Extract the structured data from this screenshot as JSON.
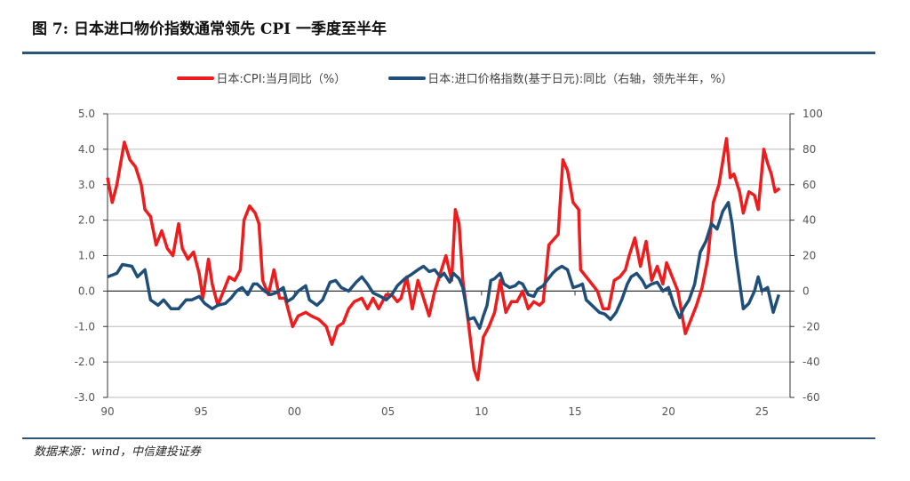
{
  "title": "图 7: 日本进口物价指数通常领先 CPI 一季度至半年",
  "source": "数据来源：wind，中信建投证券",
  "chart_data": {
    "type": "line",
    "title": "图 7: 日本进口物价指数通常领先 CPI 一季度至半年",
    "x_tick_labels": [
      "90",
      "95",
      "00",
      "05",
      "10",
      "15",
      "20",
      "25"
    ],
    "x_tick_years": [
      1990,
      1995,
      2000,
      2005,
      2010,
      2015,
      2020,
      2025
    ],
    "xlim": [
      1990,
      2026.5
    ],
    "y_left": {
      "ylim": [
        -3,
        5
      ],
      "ticks": [
        "5.0",
        "4.0",
        "3.0",
        "2.0",
        "1.0",
        "0.0",
        "-1.0",
        "-2.0",
        "-3.0"
      ]
    },
    "y_right": {
      "ylim": [
        -60,
        100
      ],
      "ticks": [
        "100",
        "80",
        "60",
        "40",
        "20",
        "0",
        "-20",
        "-40",
        "-60"
      ]
    },
    "grid": true,
    "legend": "top",
    "series": [
      {
        "name": "日本:CPI:当月同比（%）",
        "axis": "left",
        "color": "#ee1c1c",
        "points": [
          [
            1990,
            3.2
          ],
          [
            1990.25,
            2.5
          ],
          [
            1990.5,
            3.0
          ],
          [
            1990.9,
            4.2
          ],
          [
            1991.2,
            3.7
          ],
          [
            1991.5,
            3.5
          ],
          [
            1991.8,
            3.0
          ],
          [
            1992.0,
            2.3
          ],
          [
            1992.3,
            2.1
          ],
          [
            1992.6,
            1.3
          ],
          [
            1992.9,
            1.7
          ],
          [
            1993.2,
            1.2
          ],
          [
            1993.5,
            1.0
          ],
          [
            1993.8,
            1.9
          ],
          [
            1994.0,
            1.2
          ],
          [
            1994.3,
            0.9
          ],
          [
            1994.6,
            1.1
          ],
          [
            1994.9,
            0.5
          ],
          [
            1995.1,
            -0.2
          ],
          [
            1995.4,
            0.9
          ],
          [
            1995.6,
            0.2
          ],
          [
            1995.9,
            -0.4
          ],
          [
            1996.2,
            0.0
          ],
          [
            1996.5,
            0.4
          ],
          [
            1996.8,
            0.3
          ],
          [
            1997.1,
            0.6
          ],
          [
            1997.3,
            2.0
          ],
          [
            1997.6,
            2.4
          ],
          [
            1997.9,
            2.2
          ],
          [
            1998.1,
            1.9
          ],
          [
            1998.3,
            0.3
          ],
          [
            1998.6,
            -0.1
          ],
          [
            1998.9,
            0.6
          ],
          [
            1999.2,
            -0.2
          ],
          [
            1999.5,
            -0.2
          ],
          [
            1999.9,
            -1.0
          ],
          [
            2000.2,
            -0.7
          ],
          [
            2000.6,
            -0.6
          ],
          [
            2000.9,
            -0.7
          ],
          [
            2001.3,
            -0.8
          ],
          [
            2001.7,
            -1.0
          ],
          [
            2002.0,
            -1.5
          ],
          [
            2002.3,
            -1.0
          ],
          [
            2002.6,
            -0.9
          ],
          [
            2002.9,
            -0.5
          ],
          [
            2003.2,
            -0.3
          ],
          [
            2003.6,
            -0.2
          ],
          [
            2003.9,
            -0.5
          ],
          [
            2004.2,
            -0.2
          ],
          [
            2004.5,
            -0.5
          ],
          [
            2004.9,
            -0.1
          ],
          [
            2005.2,
            -0.1
          ],
          [
            2005.5,
            -0.3
          ],
          [
            2005.7,
            -0.2
          ],
          [
            2006.0,
            0.4
          ],
          [
            2006.3,
            -0.5
          ],
          [
            2006.6,
            0.3
          ],
          [
            2006.9,
            -0.2
          ],
          [
            2007.2,
            -0.7
          ],
          [
            2007.5,
            0.0
          ],
          [
            2007.8,
            0.5
          ],
          [
            2008.1,
            1.0
          ],
          [
            2008.4,
            0.3
          ],
          [
            2008.6,
            2.3
          ],
          [
            2008.8,
            1.9
          ],
          [
            2009.0,
            0.3
          ],
          [
            2009.3,
            -0.9
          ],
          [
            2009.6,
            -2.2
          ],
          [
            2009.8,
            -2.5
          ],
          [
            2010.1,
            -1.3
          ],
          [
            2010.4,
            -1.0
          ],
          [
            2010.7,
            -0.6
          ],
          [
            2011.0,
            0.3
          ],
          [
            2011.3,
            -0.6
          ],
          [
            2011.6,
            -0.3
          ],
          [
            2011.9,
            -0.3
          ],
          [
            2012.2,
            0.0
          ],
          [
            2012.5,
            -0.5
          ],
          [
            2012.8,
            -0.3
          ],
          [
            2013.1,
            -0.4
          ],
          [
            2013.3,
            -0.3
          ],
          [
            2013.6,
            1.3
          ],
          [
            2014.1,
            1.6
          ],
          [
            2014.35,
            3.7
          ],
          [
            2014.6,
            3.4
          ],
          [
            2014.9,
            2.5
          ],
          [
            2015.2,
            2.3
          ],
          [
            2015.3,
            0.6
          ],
          [
            2015.9,
            0.2
          ],
          [
            2016.2,
            0.0
          ],
          [
            2016.5,
            -0.5
          ],
          [
            2016.8,
            -0.5
          ],
          [
            2017.1,
            0.3
          ],
          [
            2017.4,
            0.4
          ],
          [
            2017.7,
            0.6
          ],
          [
            2017.9,
            1.0
          ],
          [
            2018.2,
            1.5
          ],
          [
            2018.5,
            0.7
          ],
          [
            2018.8,
            1.4
          ],
          [
            2019.1,
            0.3
          ],
          [
            2019.4,
            0.7
          ],
          [
            2019.7,
            0.2
          ],
          [
            2019.9,
            0.8
          ],
          [
            2020.2,
            0.4
          ],
          [
            2020.5,
            0.0
          ],
          [
            2020.9,
            -1.2
          ],
          [
            2021.2,
            -0.8
          ],
          [
            2021.5,
            -0.4
          ],
          [
            2021.8,
            0.1
          ],
          [
            2022.1,
            0.9
          ],
          [
            2022.4,
            2.5
          ],
          [
            2022.7,
            3.0
          ],
          [
            2023.1,
            4.3
          ],
          [
            2023.3,
            3.2
          ],
          [
            2023.5,
            3.3
          ],
          [
            2023.8,
            2.8
          ],
          [
            2024.0,
            2.2
          ],
          [
            2024.3,
            2.8
          ],
          [
            2024.6,
            2.7
          ],
          [
            2024.8,
            2.3
          ],
          [
            2025.1,
            4.0
          ],
          [
            2025.3,
            3.6
          ],
          [
            2025.5,
            3.3
          ],
          [
            2025.7,
            2.8
          ],
          [
            2025.95,
            2.9
          ]
        ]
      },
      {
        "name": "日本:进口价格指数(基于日元):同比（右轴，领先半年，%）",
        "axis": "right",
        "color": "#1f4e79",
        "points": [
          [
            1990,
            8
          ],
          [
            1990.5,
            10
          ],
          [
            1990.8,
            15
          ],
          [
            1991.3,
            14
          ],
          [
            1991.6,
            8
          ],
          [
            1992.0,
            12
          ],
          [
            1992.3,
            -5
          ],
          [
            1992.7,
            -8
          ],
          [
            1993.0,
            -5
          ],
          [
            1993.4,
            -10
          ],
          [
            1993.8,
            -10
          ],
          [
            1994.2,
            -5
          ],
          [
            1994.5,
            -5
          ],
          [
            1994.9,
            -3
          ],
          [
            1995.2,
            -7
          ],
          [
            1995.6,
            -10
          ],
          [
            1995.9,
            -8
          ],
          [
            1996.3,
            -7
          ],
          [
            1996.6,
            -4
          ],
          [
            1996.9,
            0
          ],
          [
            1997.2,
            2
          ],
          [
            1997.5,
            -2
          ],
          [
            1997.8,
            4
          ],
          [
            1998.0,
            4
          ],
          [
            1998.4,
            0
          ],
          [
            1998.7,
            -2
          ],
          [
            1999.0,
            -1
          ],
          [
            1999.4,
            2
          ],
          [
            1999.6,
            -6
          ],
          [
            1999.9,
            -4
          ],
          [
            2000.2,
            0
          ],
          [
            2000.6,
            3
          ],
          [
            2000.8,
            -5
          ],
          [
            2001.2,
            -8
          ],
          [
            2001.5,
            -5
          ],
          [
            2001.9,
            5
          ],
          [
            2002.2,
            6
          ],
          [
            2002.5,
            2
          ],
          [
            2002.9,
            0
          ],
          [
            2003.3,
            5
          ],
          [
            2003.6,
            8
          ],
          [
            2003.9,
            4
          ],
          [
            2004.2,
            -1
          ],
          [
            2004.6,
            -3
          ],
          [
            2004.9,
            -5
          ],
          [
            2005.2,
            -2
          ],
          [
            2005.5,
            3
          ],
          [
            2005.9,
            7
          ],
          [
            2006.2,
            9
          ],
          [
            2006.6,
            12
          ],
          [
            2006.9,
            14
          ],
          [
            2007.2,
            11
          ],
          [
            2007.5,
            12
          ],
          [
            2007.8,
            8
          ],
          [
            2008.0,
            10
          ],
          [
            2008.3,
            5
          ],
          [
            2008.5,
            10
          ],
          [
            2008.8,
            7
          ],
          [
            2009.0,
            2
          ],
          [
            2009.3,
            -16
          ],
          [
            2009.6,
            -15
          ],
          [
            2009.9,
            -21
          ],
          [
            2010.1,
            -14
          ],
          [
            2010.3,
            -8
          ],
          [
            2010.5,
            6
          ],
          [
            2010.7,
            7
          ],
          [
            2011.0,
            10
          ],
          [
            2011.2,
            4
          ],
          [
            2011.5,
            2
          ],
          [
            2011.8,
            3
          ],
          [
            2012.0,
            5
          ],
          [
            2012.2,
            4
          ],
          [
            2012.5,
            -2
          ],
          [
            2012.8,
            -3
          ],
          [
            2013.0,
            1
          ],
          [
            2013.3,
            3
          ],
          [
            2013.5,
            6
          ],
          [
            2013.8,
            10
          ],
          [
            2014.0,
            12
          ],
          [
            2014.3,
            14
          ],
          [
            2014.6,
            12
          ],
          [
            2014.9,
            2
          ],
          [
            2015.2,
            3
          ],
          [
            2015.4,
            4
          ],
          [
            2015.6,
            -5
          ],
          [
            2015.9,
            -8
          ],
          [
            2016.3,
            -12
          ],
          [
            2016.6,
            -13
          ],
          [
            2016.9,
            -16
          ],
          [
            2017.2,
            -12
          ],
          [
            2017.5,
            -5
          ],
          [
            2017.8,
            4
          ],
          [
            2018.0,
            8
          ],
          [
            2018.3,
            10
          ],
          [
            2018.6,
            6
          ],
          [
            2018.8,
            2
          ],
          [
            2019.1,
            4
          ],
          [
            2019.4,
            5
          ],
          [
            2019.7,
            0
          ],
          [
            2020.0,
            2
          ],
          [
            2020.3,
            -8
          ],
          [
            2020.6,
            -15
          ],
          [
            2020.8,
            -10
          ],
          [
            2021.1,
            -5
          ],
          [
            2021.4,
            4
          ],
          [
            2021.7,
            22
          ],
          [
            2022.0,
            28
          ],
          [
            2022.3,
            38
          ],
          [
            2022.6,
            35
          ],
          [
            2022.9,
            45
          ],
          [
            2023.2,
            50
          ],
          [
            2023.4,
            38
          ],
          [
            2023.6,
            20
          ],
          [
            2023.8,
            5
          ],
          [
            2024.0,
            -10
          ],
          [
            2024.3,
            -7
          ],
          [
            2024.6,
            0
          ],
          [
            2024.8,
            8
          ],
          [
            2025.0,
            0
          ],
          [
            2025.3,
            2
          ],
          [
            2025.6,
            -12
          ],
          [
            2025.9,
            -2
          ]
        ]
      }
    ]
  }
}
